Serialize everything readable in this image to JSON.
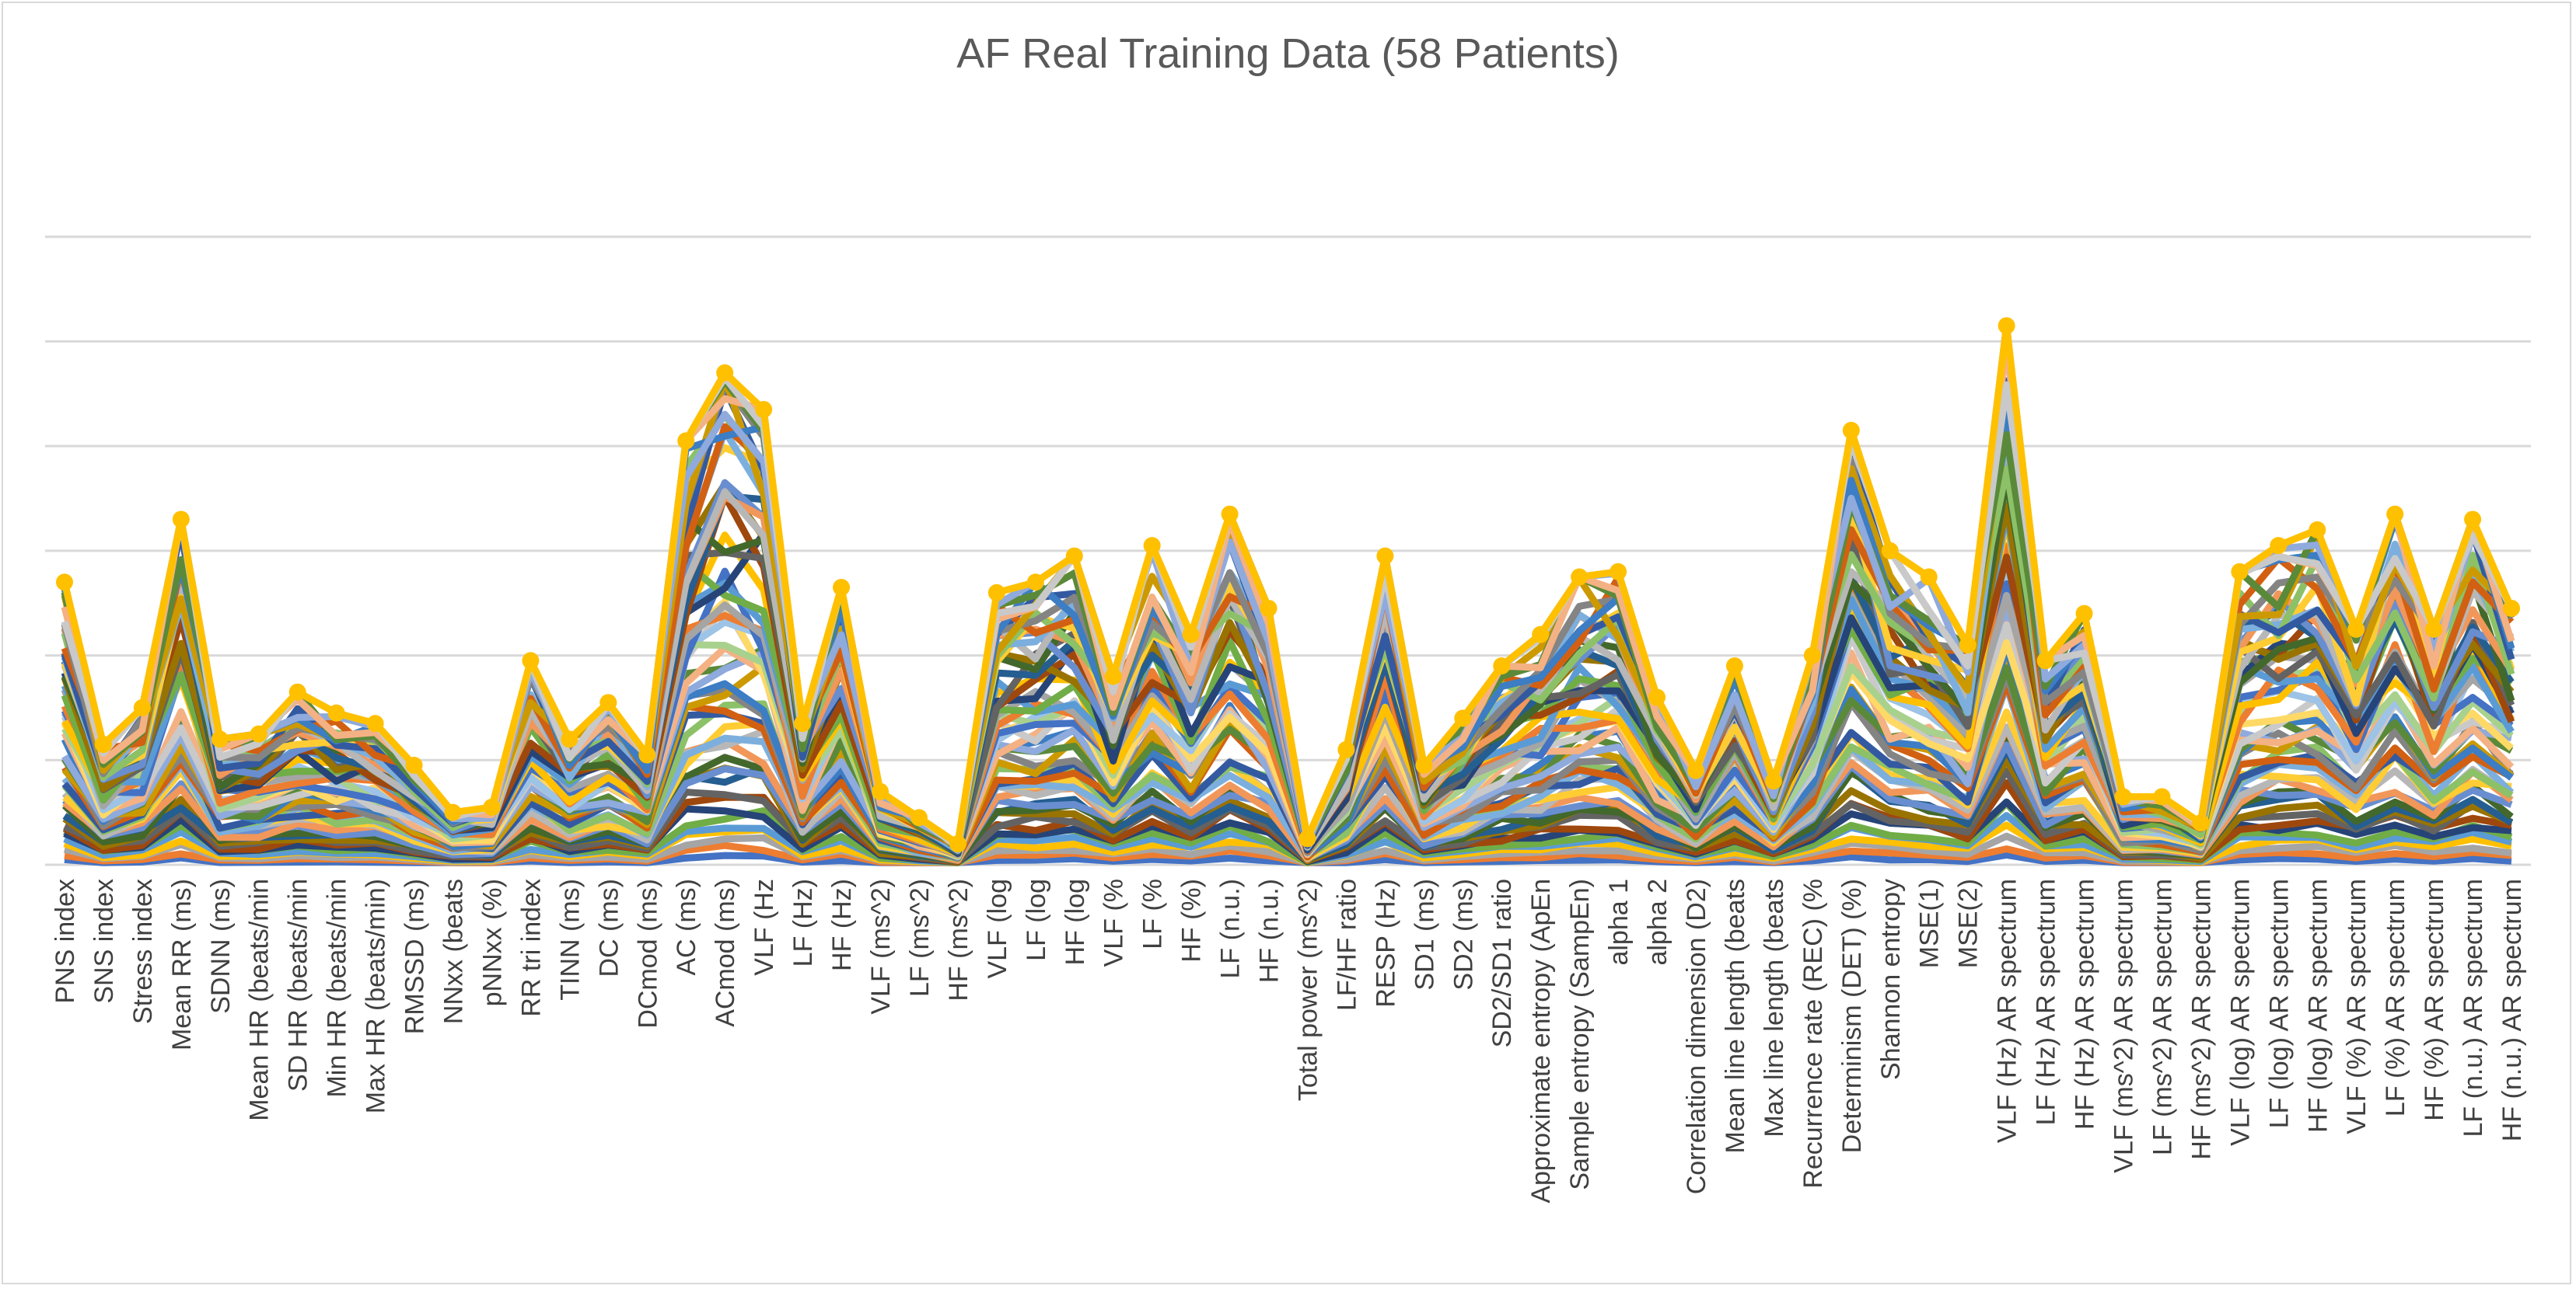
{
  "chart_data": {
    "type": "line",
    "title": "AF Real Training Data (58 Patients)",
    "xlabel": "",
    "ylabel": "",
    "ylim": [
      0,
      7
    ],
    "grid": true,
    "legend": "none",
    "y_tick_labels_shown": false,
    "gridline_values": [
      1,
      2,
      3,
      4,
      5,
      6
    ],
    "n_series": 58,
    "categories": [
      "PNS index",
      "SNS index",
      "Stress index",
      "Mean RR  (ms)",
      "SDNN (ms)",
      "Mean HR (beats/min",
      "SD HR (beats/min",
      "Min HR (beats/min",
      "Max HR (beats/min)",
      "RMSSD (ms)",
      "NNxx (beats",
      "pNNxx (%)",
      "RR tri index",
      "TINN (ms)",
      "DC (ms)",
      "DCmod (ms)",
      "AC (ms)",
      "ACmod (ms)",
      "VLF (Hz",
      "LF (Hz)",
      "HF (Hz)",
      "VLF (ms^2)",
      "LF (ms^2)",
      "HF (ms^2)",
      "VLF (log",
      "LF (log",
      "HF (log",
      "VLF (%",
      "LF (%",
      "HF (%)",
      "LF (n.u.)",
      "HF (n.u.)",
      "Total power (ms^2)",
      "LF/HF ratio",
      "RESP (Hz)",
      "SD1 (ms)",
      "SD2 (ms)",
      "SD2/SD1 ratio",
      "Approximate entropy (ApEn",
      "Sample entropy (SampEn)",
      "alpha 1",
      "alpha 2",
      "Correlation dimension (D2)",
      "Mean line length (beats",
      "Max line length (beats",
      "Recurrence rate (REC) (%",
      "Determinism (DET) (%)",
      "Shannon entropy",
      "MSE(1)",
      "MSE(2)",
      "VLF (Hz) AR spectrum",
      "LF (Hz) AR spectrum",
      "HF (Hz) AR spectrum",
      "VLF (ms^2) AR spectrum",
      "LF (ms^2) AR spectrum",
      "HF (ms^2) AR spectrum",
      "VLF (log) AR spectrum",
      "LF (log) AR spectrum",
      "HF (log) AR spectrum",
      "VLF (%) AR spectrum",
      "LF (%) AR spectrum",
      "HF (%) AR spectrum",
      "LF (n.u.) AR spectrum",
      "HF (n.u.) AR spectrum"
    ],
    "top_series": {
      "name": "",
      "color": "#ffc000",
      "values": [
        2.7,
        1.15,
        1.5,
        3.3,
        1.2,
        1.25,
        1.65,
        1.45,
        1.35,
        0.95,
        0.5,
        0.55,
        1.95,
        1.2,
        1.55,
        1.05,
        4.05,
        4.7,
        4.35,
        1.35,
        2.65,
        0.7,
        0.45,
        0.2,
        2.6,
        2.7,
        2.95,
        1.8,
        3.05,
        2.2,
        3.35,
        2.45,
        0.25,
        1.1,
        2.95,
        0.95,
        1.4,
        1.9,
        2.2,
        2.75,
        2.8,
        1.6,
        0.9,
        1.9,
        0.8,
        2.0,
        4.15,
        3.0,
        2.75,
        2.1,
        5.15,
        1.95,
        2.4,
        0.65,
        0.65,
        0.4,
        2.8,
        3.05,
        3.2,
        2.25,
        3.35,
        2.25,
        3.3,
        2.45
      ]
    },
    "series_colors": [
      "#4472c4",
      "#ed7d31",
      "#a5a5a5",
      "#ffc000",
      "#5b9bd5",
      "#70ad47",
      "#264478",
      "#9e480e",
      "#636363",
      "#997300",
      "#255e91",
      "#43682b",
      "#698ed0",
      "#f1975a",
      "#b7b7b7",
      "#ffcd33",
      "#7cafdd",
      "#8cc168",
      "#335aa1",
      "#d26012",
      "#848484",
      "#cc9a00",
      "#3c7dc4",
      "#5a8a39",
      "#8faadc",
      "#f4b183",
      "#c9c9c9",
      "#ffd966",
      "#9dc3e6",
      "#a9d18e"
    ]
  }
}
